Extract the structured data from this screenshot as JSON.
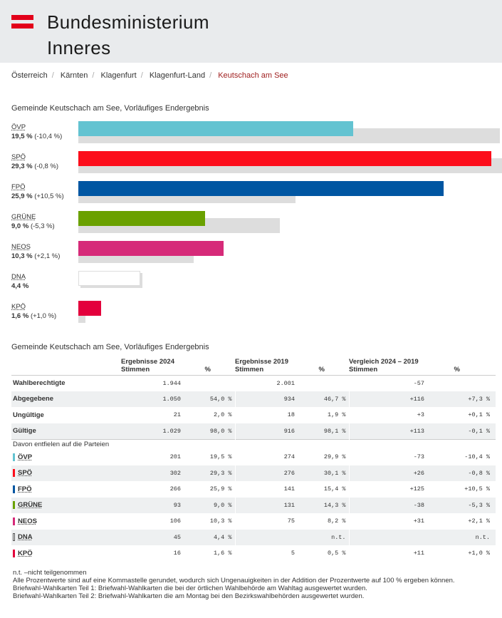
{
  "header": {
    "line1": "Bundesministerium",
    "line2": "Inneres",
    "flag_color": "#e2001a"
  },
  "breadcrumb": [
    "Österreich",
    "Kärnten",
    "Klagenfurt",
    "Klagenfurt-Land",
    "Keutschach am See"
  ],
  "chart_data": {
    "type": "bar",
    "title": "Gemeinde Keutschach am See, Vorläufiges Endergebnis",
    "series": [
      {
        "name": "2024",
        "values": [
          19.5,
          29.3,
          25.9,
          9.0,
          10.3,
          4.4,
          1.6
        ]
      },
      {
        "name": "2019",
        "values": [
          29.9,
          30.1,
          15.4,
          14.3,
          8.2,
          null,
          0.5
        ]
      }
    ],
    "categories": [
      "ÖVP",
      "SPÖ",
      "FPÖ",
      "GRÜNE",
      "NEOS",
      "DNA",
      "KPÖ"
    ],
    "labels": [
      "19,5 %",
      "29,3 %",
      "25,9 %",
      "9,0 %",
      "10,3 %",
      "4,4 %",
      "1,6 %"
    ],
    "changes": [
      "(-10,4 %)",
      "(-0,8 %)",
      "(+10,5 %)",
      "(-5,3 %)",
      "(+2,1 %)",
      "",
      "(+1,0 %)"
    ],
    "colors": [
      "#63c3d1",
      "#fc0d1b",
      "#0056a2",
      "#6aa100",
      "#d62a79",
      "#ffffff",
      "#e3003c"
    ]
  },
  "table": {
    "title": "Gemeinde Keutschach am See, Vorläufiges Endergebnis",
    "groups": [
      {
        "title": "Ergebnisse 2024",
        "s": "Stimmen",
        "p": "%"
      },
      {
        "title": "Ergebnisse 2019",
        "s": "Stimmen",
        "p": "%"
      },
      {
        "title": "Vergleich 2024 – 2019",
        "s": "Stimmen",
        "p": "%"
      }
    ],
    "rows": [
      [
        "Wahlberechtigte",
        "1.944",
        "",
        "2.001",
        "",
        "-57",
        ""
      ],
      [
        "Abgegebene",
        "1.050",
        "54,0 %",
        "934",
        "46,7 %",
        "+116",
        "+7,3 %"
      ],
      [
        "Ungültige",
        "21",
        "2,0 %",
        "18",
        "1,9 %",
        "+3",
        "+0,1 %"
      ],
      [
        "Gültige",
        "1.029",
        "98,0 %",
        "916",
        "98,1 %",
        "+113",
        "-0,1 %"
      ]
    ],
    "sub": "Davon entfielen auf die Parteien",
    "parties": [
      [
        "ÖVP",
        "201",
        "19,5 %",
        "274",
        "29,9 %",
        "-73",
        "-10,4 %"
      ],
      [
        "SPÖ",
        "302",
        "29,3 %",
        "276",
        "30,1 %",
        "+26",
        "-0,8 %"
      ],
      [
        "FPÖ",
        "266",
        "25,9 %",
        "141",
        "15,4 %",
        "+125",
        "+10,5 %"
      ],
      [
        "GRÜNE",
        "93",
        "9,0 %",
        "131",
        "14,3 %",
        "-38",
        "-5,3 %"
      ],
      [
        "NEOS",
        "106",
        "10,3 %",
        "75",
        "8,2 %",
        "+31",
        "+2,1 %"
      ],
      [
        "DNA",
        "45",
        "4,4 %",
        "",
        "n.t.",
        "",
        "n.t."
      ],
      [
        "KPÖ",
        "16",
        "1,6 %",
        "5",
        "0,5 %",
        "+11",
        "+1,0 %"
      ]
    ]
  },
  "notes": [
    "n.t. –nicht teilgenommen",
    "Alle Prozentwerte sind auf eine Kommastelle gerundet, wodurch sich Ungenauigkeiten in der Addition der Prozentwerte auf 100 % ergeben können.",
    "Briefwahl-Wahlkarten Teil 1: Briefwahl-Wahlkarten die bei der örtlichen Wahlbehörde am Wahltag ausgewertet wurden.",
    "Briefwahl-Wahlkarten Teil 2: Briefwahl-Wahlkarten die am Montag bei den Bezirkswahlbehörden ausgewertet wurden."
  ]
}
